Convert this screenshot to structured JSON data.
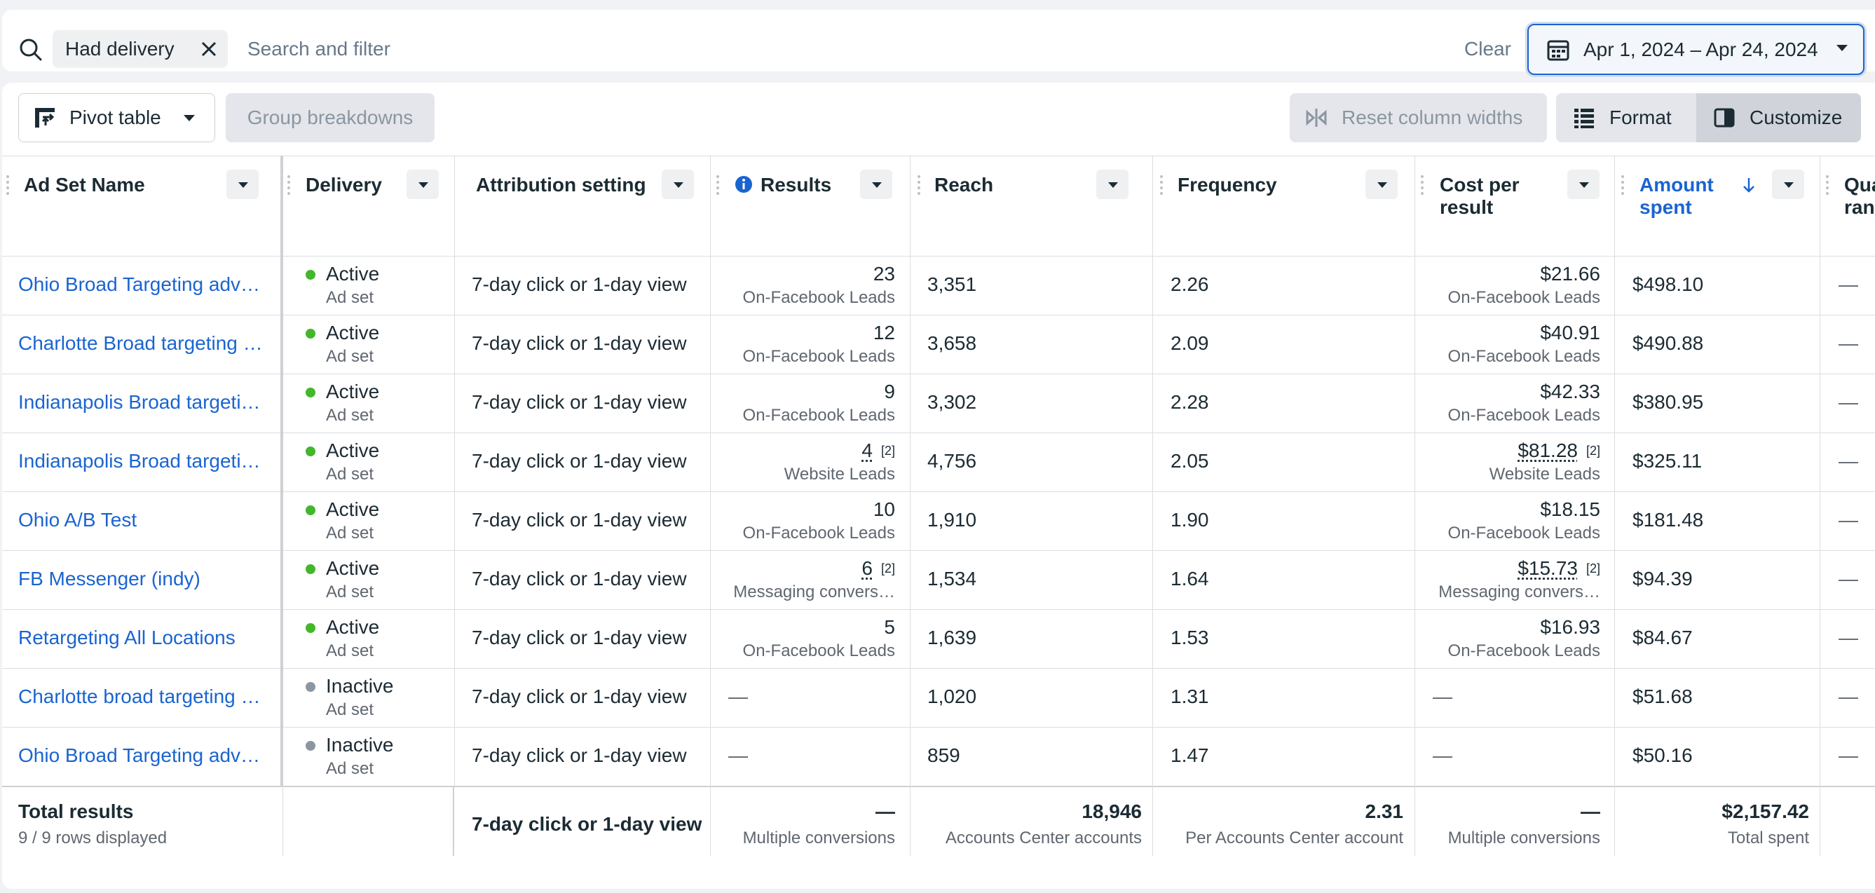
{
  "search": {
    "chip_label": "Had delivery",
    "placeholder": "Search and filter",
    "clear_label": "Clear",
    "date_range": "Apr 1, 2024 – Apr 24, 2024"
  },
  "toolbar": {
    "pivot_label": "Pivot table",
    "group_label": "Group breakdowns",
    "reset_label": "Reset column widths",
    "format_label": "Format",
    "customize_label": "Customize"
  },
  "columns": {
    "ad_set_name": "Ad Set Name",
    "delivery": "Delivery",
    "attribution": "Attribution setting",
    "results": "Results",
    "reach": "Reach",
    "frequency": "Frequency",
    "cost_per_result": "Cost per result",
    "amount_spent": "Amount spent",
    "quality": "Qua ran"
  },
  "rows": [
    {
      "name": "Ohio Broad Targeting adv…",
      "status": "Active",
      "level": "Ad set",
      "attribution": "7-day click or 1-day view",
      "results": "23",
      "results_note": "",
      "results_type": "On-Facebook Leads",
      "reach": "3,351",
      "frequency": "2.26",
      "cost": "$21.66",
      "cost_note": "",
      "cost_type": "On-Facebook Leads",
      "spent": "$498.10",
      "quality": "—"
    },
    {
      "name": "Charlotte Broad targeting …",
      "status": "Active",
      "level": "Ad set",
      "attribution": "7-day click or 1-day view",
      "results": "12",
      "results_note": "",
      "results_type": "On-Facebook Leads",
      "reach": "3,658",
      "frequency": "2.09",
      "cost": "$40.91",
      "cost_note": "",
      "cost_type": "On-Facebook Leads",
      "spent": "$490.88",
      "quality": "—"
    },
    {
      "name": "Indianapolis Broad targeti…",
      "status": "Active",
      "level": "Ad set",
      "attribution": "7-day click or 1-day view",
      "results": "9",
      "results_note": "",
      "results_type": "On-Facebook Leads",
      "reach": "3,302",
      "frequency": "2.28",
      "cost": "$42.33",
      "cost_note": "",
      "cost_type": "On-Facebook Leads",
      "spent": "$380.95",
      "quality": "—"
    },
    {
      "name": "Indianapolis Broad targeti…",
      "status": "Active",
      "level": "Ad set",
      "attribution": "7-day click or 1-day view",
      "results": "4",
      "results_note": "[2]",
      "results_type": "Website Leads",
      "reach": "4,756",
      "frequency": "2.05",
      "cost": "$81.28",
      "cost_note": "[2]",
      "cost_type": "Website Leads",
      "spent": "$325.11",
      "quality": "—"
    },
    {
      "name": "Ohio A/B Test",
      "status": "Active",
      "level": "Ad set",
      "attribution": "7-day click or 1-day view",
      "results": "10",
      "results_note": "",
      "results_type": "On-Facebook Leads",
      "reach": "1,910",
      "frequency": "1.90",
      "cost": "$18.15",
      "cost_note": "",
      "cost_type": "On-Facebook Leads",
      "spent": "$181.48",
      "quality": "—"
    },
    {
      "name": "FB Messenger (indy)",
      "status": "Active",
      "level": "Ad set",
      "attribution": "7-day click or 1-day view",
      "results": "6",
      "results_note": "[2]",
      "results_type": "Messaging convers…",
      "reach": "1,534",
      "frequency": "1.64",
      "cost": "$15.73",
      "cost_note": "[2]",
      "cost_type": "Messaging convers…",
      "spent": "$94.39",
      "quality": "—"
    },
    {
      "name": "Retargeting All Locations",
      "status": "Active",
      "level": "Ad set",
      "attribution": "7-day click or 1-day view",
      "results": "5",
      "results_note": "",
      "results_type": "On-Facebook Leads",
      "reach": "1,639",
      "frequency": "1.53",
      "cost": "$16.93",
      "cost_note": "",
      "cost_type": "On-Facebook Leads",
      "spent": "$84.67",
      "quality": "—"
    },
    {
      "name": "Charlotte broad targeting …",
      "status": "Inactive",
      "level": "Ad set",
      "attribution": "7-day click or 1-day view",
      "results": "—",
      "results_note": "",
      "results_type": "",
      "reach": "1,020",
      "frequency": "1.31",
      "cost": "—",
      "cost_note": "",
      "cost_type": "",
      "spent": "$51.68",
      "quality": "—"
    },
    {
      "name": "Ohio Broad Targeting adv…",
      "status": "Inactive",
      "level": "Ad set",
      "attribution": "7-day click or 1-day view",
      "results": "—",
      "results_note": "",
      "results_type": "",
      "reach": "859",
      "frequency": "1.47",
      "cost": "—",
      "cost_note": "",
      "cost_type": "",
      "spent": "$50.16",
      "quality": "—"
    }
  ],
  "totals": {
    "label": "Total results",
    "rows_displayed": "9 / 9 rows displayed",
    "attribution": "7-day click or 1-day view",
    "results": "—",
    "results_sub": "Multiple conversions",
    "reach": "18,946",
    "reach_sub": "Accounts Center accounts",
    "frequency": "2.31",
    "frequency_sub": "Per Accounts Center account",
    "cost": "—",
    "cost_sub": "Multiple conversions",
    "spent": "$2,157.42",
    "spent_sub": "Total spent"
  },
  "colors": {
    "link": "#1a64d0",
    "active_dot": "#42b72a",
    "inactive_dot": "#8c96a3",
    "date_border": "#1a64d0"
  }
}
